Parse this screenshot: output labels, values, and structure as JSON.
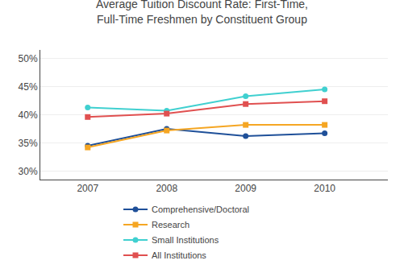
{
  "chart_data": {
    "type": "line",
    "title": "Average Tuition Discount Rate: First-Time,\nFull-Time Freshmen by Constituent Group",
    "x": [
      2007,
      2008,
      2009,
      2010
    ],
    "series": [
      {
        "name": "Comprehensive/Doctoral",
        "color": "#1f5099",
        "marker": "circle",
        "values": [
          34.5,
          37.5,
          36.2,
          36.7
        ]
      },
      {
        "name": "Research",
        "color": "#f5a623",
        "marker": "square",
        "values": [
          34.2,
          37.2,
          38.2,
          38.2
        ]
      },
      {
        "name": "Small Institutions",
        "color": "#40d0d0",
        "marker": "circle",
        "values": [
          41.3,
          40.7,
          43.3,
          44.5
        ]
      },
      {
        "name": "All Institutions",
        "color": "#e05050",
        "marker": "square",
        "values": [
          39.6,
          40.2,
          41.9,
          42.4
        ]
      }
    ],
    "xlim": [
      2006.4,
      2010.8
    ],
    "xticks": [
      2007,
      2008,
      2009,
      2010
    ],
    "ylim": [
      28.5,
      51.5
    ],
    "yticks": [
      {
        "value": 30,
        "label": "30%"
      },
      {
        "value": 35,
        "label": "35%"
      },
      {
        "value": 40,
        "label": "40%"
      },
      {
        "value": 45,
        "label": "45%"
      },
      {
        "value": 50,
        "label": "50%"
      }
    ],
    "grid": true,
    "legend": "bottom"
  }
}
